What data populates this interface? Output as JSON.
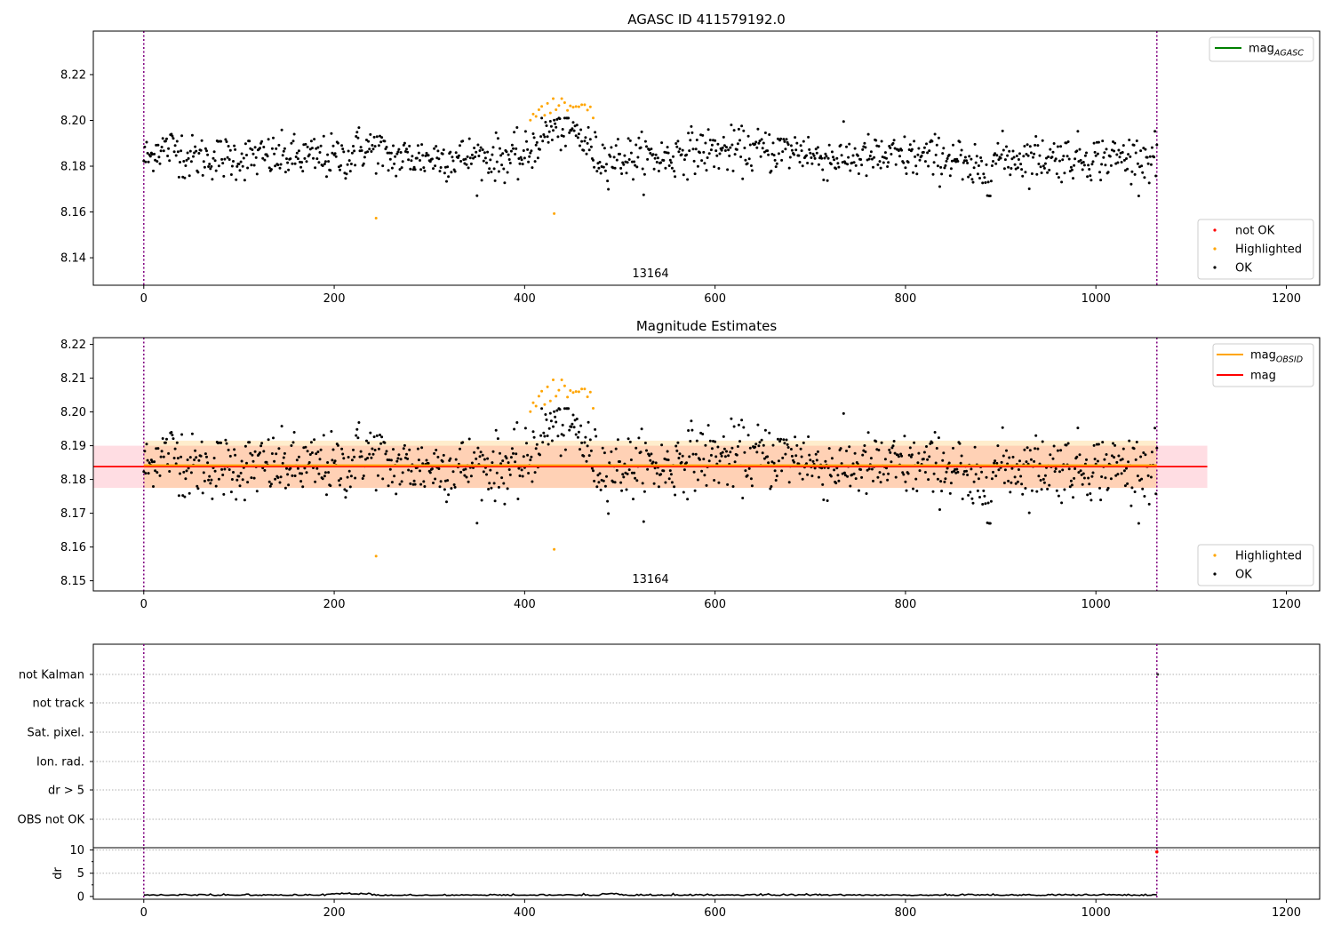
{
  "figure": {
    "title_top": "AGASC ID 411579192.0",
    "title_middle": "Magnitude Estimates",
    "obsid_label": "13164"
  },
  "colors": {
    "ok": "#000000",
    "highlighted": "#ffa500",
    "not_ok": "#ff0000",
    "mag_agasc": "#008000",
    "mag_obsid": "#ffa500",
    "mag": "#ff0000",
    "obs_boundary": "#800080"
  },
  "chart_data": [
    {
      "type": "scatter",
      "title": "AGASC ID 411579192.0",
      "xlim": [
        -53,
        1235
      ],
      "ylim": [
        8.128,
        8.239
      ],
      "xticks": [
        0,
        200,
        400,
        600,
        800,
        1000,
        1200
      ],
      "yticks": [
        8.14,
        8.16,
        8.18,
        8.2,
        8.22
      ],
      "grid": false,
      "annotations": [
        "13164"
      ],
      "vlines": [
        0,
        1064
      ],
      "legends": [
        {
          "placement": "upper right",
          "entries": [
            {
              "label": "mag",
              "sub": "AGASC",
              "kind": "line",
              "color": "#008000"
            }
          ]
        },
        {
          "placement": "lower right",
          "entries": [
            {
              "label": "not OK",
              "kind": "marker",
              "color": "#ff0000"
            },
            {
              "label": "Highlighted",
              "kind": "marker",
              "color": "#ffa500"
            },
            {
              "label": "OK",
              "kind": "marker",
              "color": "#000000"
            }
          ]
        }
      ],
      "series": [
        {
          "name": "OK",
          "points": "ok_points (1065 samples, x 0–1064, y ≈ 8.167–8.201)"
        },
        {
          "name": "Highlighted",
          "points": [
            [
              244,
              8.157
            ],
            [
              431,
              8.159
            ],
            [
              408,
              8.209
            ],
            [
              415,
              8.205
            ],
            [
              423,
              8.204
            ],
            [
              433,
              8.209
            ],
            [
              441,
              8.203
            ],
            [
              452,
              8.201
            ],
            [
              459,
              8.209
            ],
            [
              471,
              8.202
            ]
          ]
        },
        {
          "name": "not OK",
          "points": []
        }
      ]
    },
    {
      "type": "scatter",
      "title": "Magnitude Estimates",
      "xlim": [
        -53,
        1235
      ],
      "ylim": [
        8.147,
        8.222
      ],
      "xticks": [
        0,
        200,
        400,
        600,
        800,
        1000,
        1200
      ],
      "yticks": [
        8.15,
        8.16,
        8.17,
        8.18,
        8.19,
        8.2,
        8.21,
        8.22
      ],
      "grid": false,
      "annotations": [
        "13164"
      ],
      "mag": 8.1838,
      "mag_band": [
        8.1775,
        8.19
      ],
      "mag_obsid": 8.1842,
      "mag_obsid_band": [
        8.1775,
        8.1915
      ],
      "legends": [
        {
          "placement": "upper right",
          "entries": [
            {
              "label": "mag",
              "sub": "OBSID",
              "kind": "line",
              "color": "#ffa500"
            },
            {
              "label": "mag",
              "kind": "line",
              "color": "#ff0000"
            }
          ]
        },
        {
          "placement": "lower right",
          "entries": [
            {
              "label": "Highlighted",
              "kind": "marker",
              "color": "#ffa500"
            },
            {
              "label": "OK",
              "kind": "marker",
              "color": "#000000"
            }
          ]
        }
      ]
    },
    {
      "type": "scatter",
      "categories": [
        "not Kalman",
        "not track",
        "Sat. pixel.",
        "Ion. rad.",
        "dr > 5",
        "OBS not OK"
      ],
      "flag_points": [
        [
          1064,
          "not Kalman"
        ]
      ]
    },
    {
      "type": "line",
      "ylabel": "dr",
      "xlim": [
        -53,
        1235
      ],
      "ylim": [
        -0.6,
        10.5
      ],
      "yticks": [
        0,
        5,
        10
      ],
      "xticks": [
        0,
        200,
        400,
        600,
        800,
        1000,
        1200
      ],
      "series": [
        {
          "values": "dr ≈ 0.1–0.6 across x 0–1064"
        }
      ],
      "outlier": [
        1064,
        9.6
      ]
    }
  ]
}
